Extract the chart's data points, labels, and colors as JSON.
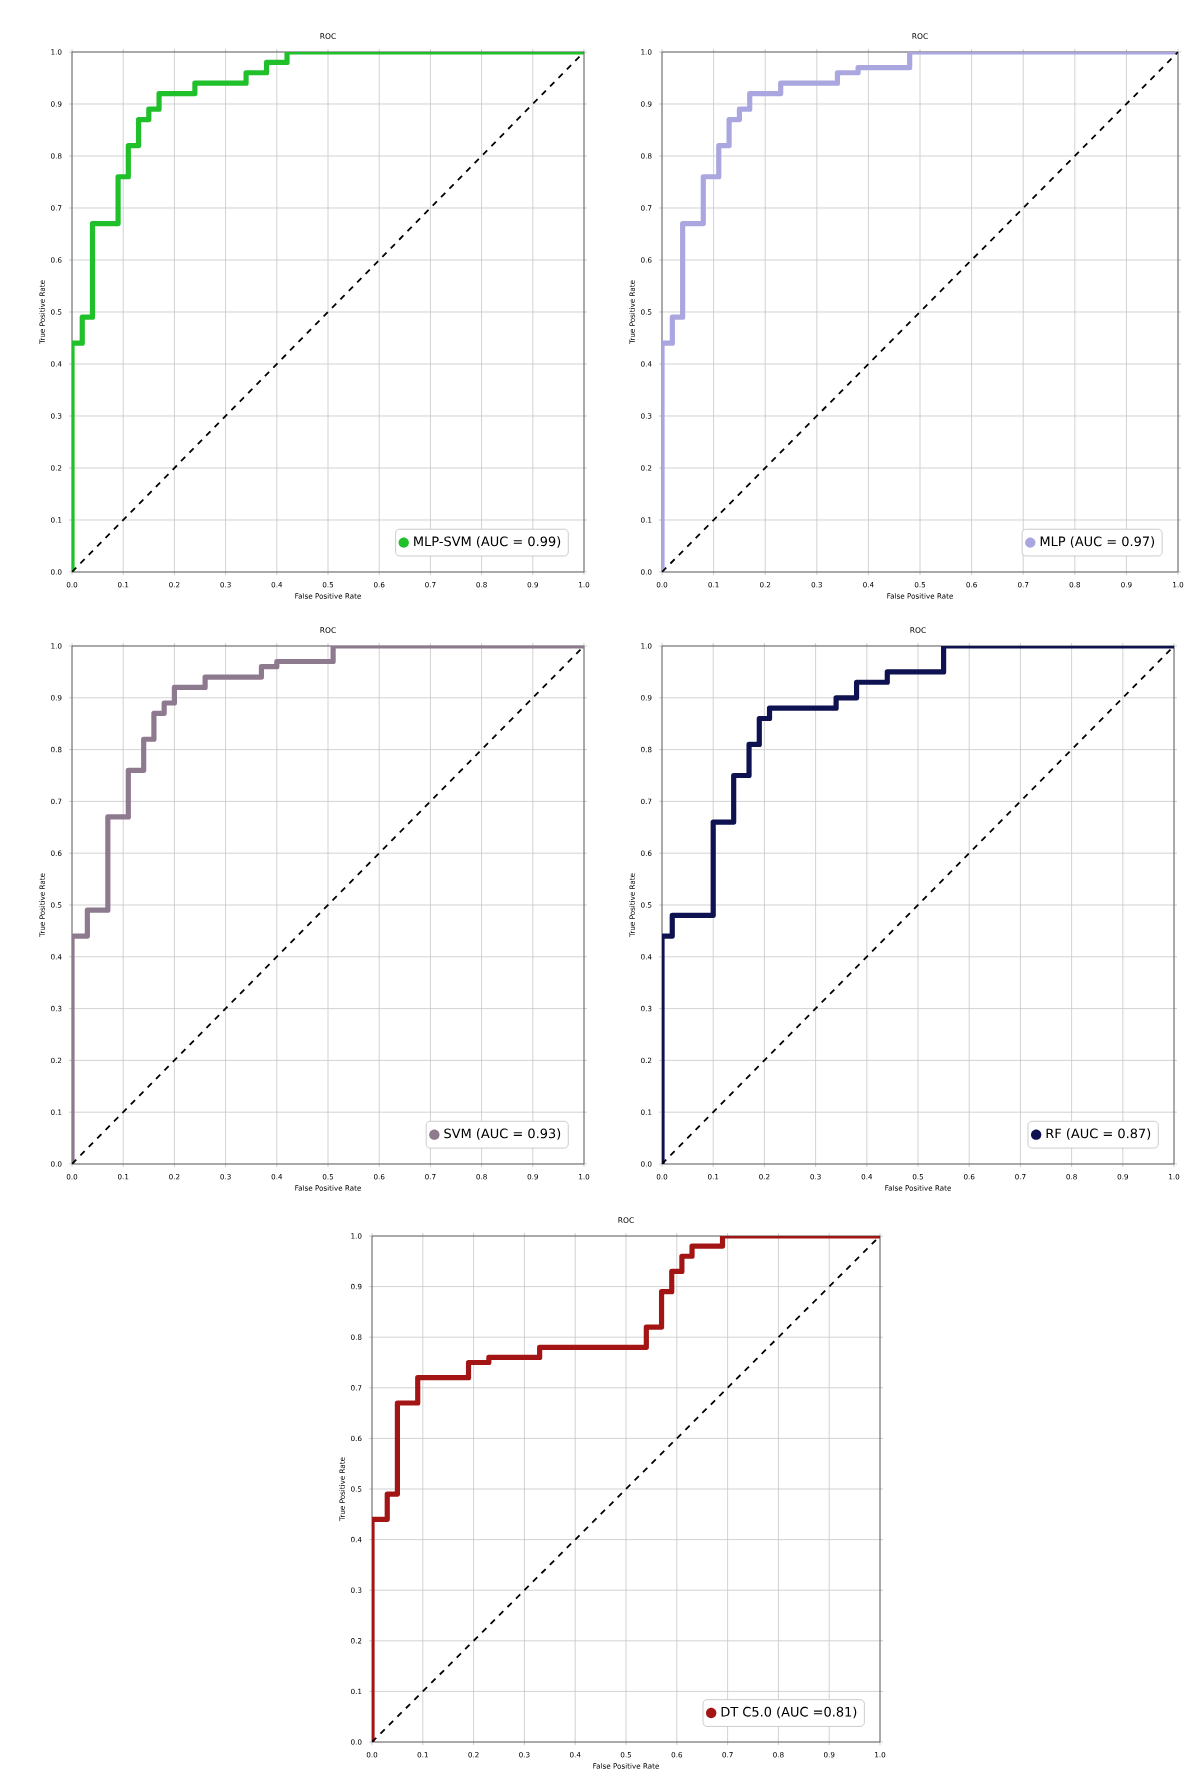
{
  "chart_data": [
    {
      "type": "line",
      "title": "ROC",
      "xlabel": "False Positive Rate",
      "ylabel": "True Positive Rate",
      "xlim": [
        0,
        1
      ],
      "ylim": [
        0,
        1
      ],
      "xticks": [
        {
          "value": 0,
          "label": "0.0"
        },
        {
          "value": 0.1,
          "label": "0.1"
        },
        {
          "value": 0.2,
          "label": "0.2"
        },
        {
          "value": 0.3,
          "label": "0.3"
        },
        {
          "value": 0.4,
          "label": "0.4"
        },
        {
          "value": 0.5,
          "label": "0.5"
        },
        {
          "value": 0.6,
          "label": "0.6"
        },
        {
          "value": 0.7,
          "label": "0.7"
        },
        {
          "value": 0.8,
          "label": "0.8"
        },
        {
          "value": 0.9,
          "label": "0.9"
        },
        {
          "value": 1,
          "label": "1.0"
        }
      ],
      "yticks": [
        {
          "value": 0,
          "label": "0.0"
        },
        {
          "value": 0.1,
          "label": "0.1"
        },
        {
          "value": 0.2,
          "label": "0.2"
        },
        {
          "value": 0.3,
          "label": "0.3"
        },
        {
          "value": 0.4,
          "label": "0.4"
        },
        {
          "value": 0.5,
          "label": "0.5"
        },
        {
          "value": 0.6,
          "label": "0.6"
        },
        {
          "value": 0.7,
          "label": "0.7"
        },
        {
          "value": 0.8,
          "label": "0.8"
        },
        {
          "value": 0.9,
          "label": "0.9"
        },
        {
          "value": 1,
          "label": "1.0"
        }
      ],
      "grid": true,
      "legend": "bottom right",
      "series": [
        {
          "name": "MLP-SVM (AUC = 0.99)",
          "color": "#1fc02a",
          "x": [
            0,
            0,
            0.02,
            0.02,
            0.04,
            0.04,
            0.09,
            0.09,
            0.11,
            0.11,
            0.13,
            0.13,
            0.15,
            0.15,
            0.17,
            0.17,
            0.24,
            0.24,
            0.34,
            0.34,
            0.38,
            0.38,
            0.42,
            0.42,
            1
          ],
          "values": [
            0,
            0.44,
            0.44,
            0.49,
            0.49,
            0.67,
            0.67,
            0.76,
            0.76,
            0.82,
            0.82,
            0.87,
            0.87,
            0.89,
            0.89,
            0.92,
            0.92,
            0.94,
            0.94,
            0.96,
            0.96,
            0.98,
            0.98,
            1,
            1
          ]
        },
        {
          "color": "#000000",
          "line_style": "dashed",
          "x": [
            0,
            1
          ],
          "values": [
            0,
            1
          ]
        }
      ]
    },
    {
      "type": "line",
      "title": "ROC",
      "xlabel": "False Positive Rate",
      "ylabel": "True Positive Rate",
      "xlim": [
        0,
        1
      ],
      "ylim": [
        0,
        1
      ],
      "xticks": [
        {
          "value": 0,
          "label": "0.0"
        },
        {
          "value": 0.1,
          "label": "0.1"
        },
        {
          "value": 0.2,
          "label": "0.2"
        },
        {
          "value": 0.3,
          "label": "0.3"
        },
        {
          "value": 0.4,
          "label": "0.4"
        },
        {
          "value": 0.5,
          "label": "0.5"
        },
        {
          "value": 0.6,
          "label": "0.6"
        },
        {
          "value": 0.7,
          "label": "0.7"
        },
        {
          "value": 0.8,
          "label": "0.8"
        },
        {
          "value": 0.9,
          "label": "0.9"
        },
        {
          "value": 1,
          "label": "1.0"
        }
      ],
      "yticks": [
        {
          "value": 0,
          "label": "0.0"
        },
        {
          "value": 0.1,
          "label": "0.1"
        },
        {
          "value": 0.2,
          "label": "0.2"
        },
        {
          "value": 0.3,
          "label": "0.3"
        },
        {
          "value": 0.4,
          "label": "0.4"
        },
        {
          "value": 0.5,
          "label": "0.5"
        },
        {
          "value": 0.6,
          "label": "0.6"
        },
        {
          "value": 0.7,
          "label": "0.7"
        },
        {
          "value": 0.8,
          "label": "0.8"
        },
        {
          "value": 0.9,
          "label": "0.9"
        },
        {
          "value": 1,
          "label": "1.0"
        }
      ],
      "grid": true,
      "legend": "bottom right",
      "series": [
        {
          "name": "MLP (AUC = 0.97)",
          "color": "#aaa6e0",
          "x": [
            0,
            0,
            0.02,
            0.02,
            0.04,
            0.04,
            0.08,
            0.08,
            0.11,
            0.11,
            0.13,
            0.13,
            0.15,
            0.15,
            0.17,
            0.17,
            0.23,
            0.23,
            0.34,
            0.34,
            0.38,
            0.38,
            0.48,
            0.48,
            1
          ],
          "values": [
            0,
            0.44,
            0.44,
            0.49,
            0.49,
            0.67,
            0.67,
            0.76,
            0.76,
            0.82,
            0.82,
            0.87,
            0.87,
            0.89,
            0.89,
            0.92,
            0.92,
            0.94,
            0.94,
            0.96,
            0.96,
            0.97,
            0.97,
            1,
            1
          ]
        },
        {
          "color": "#000000",
          "line_style": "dashed",
          "x": [
            0,
            1
          ],
          "values": [
            0,
            1
          ]
        }
      ]
    },
    {
      "type": "line",
      "title": "ROC",
      "xlabel": "False Positive Rate",
      "ylabel": "True Positive Rate",
      "xlim": [
        0,
        1
      ],
      "ylim": [
        0,
        1
      ],
      "xticks": [
        {
          "value": 0,
          "label": "0.0"
        },
        {
          "value": 0.1,
          "label": "0.1"
        },
        {
          "value": 0.2,
          "label": "0.2"
        },
        {
          "value": 0.3,
          "label": "0.3"
        },
        {
          "value": 0.4,
          "label": "0.4"
        },
        {
          "value": 0.5,
          "label": "0.5"
        },
        {
          "value": 0.6,
          "label": "0.6"
        },
        {
          "value": 0.7,
          "label": "0.7"
        },
        {
          "value": 0.8,
          "label": "0.8"
        },
        {
          "value": 0.9,
          "label": "0.9"
        },
        {
          "value": 1,
          "label": "1.0"
        }
      ],
      "yticks": [
        {
          "value": 0,
          "label": "0.0"
        },
        {
          "value": 0.1,
          "label": "0.1"
        },
        {
          "value": 0.2,
          "label": "0.2"
        },
        {
          "value": 0.3,
          "label": "0.3"
        },
        {
          "value": 0.4,
          "label": "0.4"
        },
        {
          "value": 0.5,
          "label": "0.5"
        },
        {
          "value": 0.6,
          "label": "0.6"
        },
        {
          "value": 0.7,
          "label": "0.7"
        },
        {
          "value": 0.8,
          "label": "0.8"
        },
        {
          "value": 0.9,
          "label": "0.9"
        },
        {
          "value": 1,
          "label": "1.0"
        }
      ],
      "grid": true,
      "legend": "bottom right",
      "series": [
        {
          "name": "SVM (AUC = 0.93)",
          "color": "#8e7a8e",
          "x": [
            0,
            0,
            0.03,
            0.03,
            0.07,
            0.07,
            0.11,
            0.11,
            0.14,
            0.14,
            0.16,
            0.16,
            0.18,
            0.18,
            0.2,
            0.2,
            0.26,
            0.26,
            0.37,
            0.37,
            0.4,
            0.4,
            0.51,
            0.51,
            1
          ],
          "values": [
            0,
            0.44,
            0.44,
            0.49,
            0.49,
            0.67,
            0.67,
            0.76,
            0.76,
            0.82,
            0.82,
            0.87,
            0.87,
            0.89,
            0.89,
            0.92,
            0.92,
            0.94,
            0.94,
            0.96,
            0.96,
            0.97,
            0.97,
            1,
            1
          ]
        },
        {
          "color": "#000000",
          "line_style": "dashed",
          "x": [
            0,
            1
          ],
          "values": [
            0,
            1
          ]
        }
      ]
    },
    {
      "type": "line",
      "title": "ROC",
      "xlabel": "False Positive Rate",
      "ylabel": "True Positive Rate",
      "xlim": [
        0,
        1
      ],
      "ylim": [
        0,
        1
      ],
      "xticks": [
        {
          "value": 0,
          "label": "0.0"
        },
        {
          "value": 0.1,
          "label": "0.1"
        },
        {
          "value": 0.2,
          "label": "0.2"
        },
        {
          "value": 0.3,
          "label": "0.3"
        },
        {
          "value": 0.4,
          "label": "0.4"
        },
        {
          "value": 0.5,
          "label": "0.5"
        },
        {
          "value": 0.6,
          "label": "0.6"
        },
        {
          "value": 0.7,
          "label": "0.7"
        },
        {
          "value": 0.8,
          "label": "0.8"
        },
        {
          "value": 0.9,
          "label": "0.9"
        },
        {
          "value": 1,
          "label": "1.0"
        }
      ],
      "yticks": [
        {
          "value": 0,
          "label": "0.0"
        },
        {
          "value": 0.1,
          "label": "0.1"
        },
        {
          "value": 0.2,
          "label": "0.2"
        },
        {
          "value": 0.3,
          "label": "0.3"
        },
        {
          "value": 0.4,
          "label": "0.4"
        },
        {
          "value": 0.5,
          "label": "0.5"
        },
        {
          "value": 0.6,
          "label": "0.6"
        },
        {
          "value": 0.7,
          "label": "0.7"
        },
        {
          "value": 0.8,
          "label": "0.8"
        },
        {
          "value": 0.9,
          "label": "0.9"
        },
        {
          "value": 1,
          "label": "1.0"
        }
      ],
      "grid": true,
      "legend": "bottom right",
      "series": [
        {
          "name": "RF (AUC = 0.87)",
          "color": "#0f1250",
          "x": [
            0,
            0,
            0.02,
            0.02,
            0.1,
            0.1,
            0.14,
            0.14,
            0.17,
            0.17,
            0.19,
            0.19,
            0.21,
            0.21,
            0.34,
            0.34,
            0.38,
            0.38,
            0.44,
            0.44,
            0.55,
            0.55,
            1
          ],
          "values": [
            0,
            0.44,
            0.44,
            0.48,
            0.48,
            0.66,
            0.66,
            0.75,
            0.75,
            0.81,
            0.81,
            0.86,
            0.86,
            0.88,
            0.88,
            0.9,
            0.9,
            0.93,
            0.93,
            0.95,
            0.95,
            1,
            1
          ]
        },
        {
          "color": "#000000",
          "line_style": "dashed",
          "x": [
            0,
            1
          ],
          "values": [
            0,
            1
          ]
        }
      ]
    },
    {
      "type": "line",
      "title": "ROC",
      "xlabel": "False Positive Rate",
      "ylabel": "True Positive Rate",
      "xlim": [
        0,
        1
      ],
      "ylim": [
        0,
        1
      ],
      "xticks": [
        {
          "value": 0,
          "label": "0.0"
        },
        {
          "value": 0.1,
          "label": "0.1"
        },
        {
          "value": 0.2,
          "label": "0.2"
        },
        {
          "value": 0.3,
          "label": "0.3"
        },
        {
          "value": 0.4,
          "label": "0.4"
        },
        {
          "value": 0.5,
          "label": "0.5"
        },
        {
          "value": 0.6,
          "label": "0.6"
        },
        {
          "value": 0.7,
          "label": "0.7"
        },
        {
          "value": 0.8,
          "label": "0.8"
        },
        {
          "value": 0.9,
          "label": "0.9"
        },
        {
          "value": 1,
          "label": "1.0"
        }
      ],
      "yticks": [
        {
          "value": 0,
          "label": "0.0"
        },
        {
          "value": 0.1,
          "label": "0.1"
        },
        {
          "value": 0.2,
          "label": "0.2"
        },
        {
          "value": 0.3,
          "label": "0.3"
        },
        {
          "value": 0.4,
          "label": "0.4"
        },
        {
          "value": 0.5,
          "label": "0.5"
        },
        {
          "value": 0.6,
          "label": "0.6"
        },
        {
          "value": 0.7,
          "label": "0.7"
        },
        {
          "value": 0.8,
          "label": "0.8"
        },
        {
          "value": 0.9,
          "label": "0.9"
        },
        {
          "value": 1,
          "label": "1.0"
        }
      ],
      "grid": true,
      "legend": "bottom right",
      "series": [
        {
          "name": "DT C5.0 (AUC =0.81)",
          "color": "#a31515",
          "x": [
            0,
            0,
            0.03,
            0.03,
            0.05,
            0.05,
            0.09,
            0.09,
            0.19,
            0.19,
            0.23,
            0.23,
            0.33,
            0.33,
            0.54,
            0.54,
            0.57,
            0.57,
            0.59,
            0.59,
            0.61,
            0.61,
            0.63,
            0.63,
            0.69,
            0.69,
            1
          ],
          "values": [
            0,
            0.44,
            0.44,
            0.49,
            0.49,
            0.67,
            0.67,
            0.72,
            0.72,
            0.75,
            0.75,
            0.76,
            0.76,
            0.78,
            0.78,
            0.82,
            0.82,
            0.89,
            0.89,
            0.93,
            0.93,
            0.96,
            0.96,
            0.98,
            0.98,
            1,
            1
          ]
        },
        {
          "color": "#000000",
          "line_style": "dashed",
          "x": [
            0,
            1
          ],
          "values": [
            0,
            1
          ]
        }
      ]
    }
  ]
}
